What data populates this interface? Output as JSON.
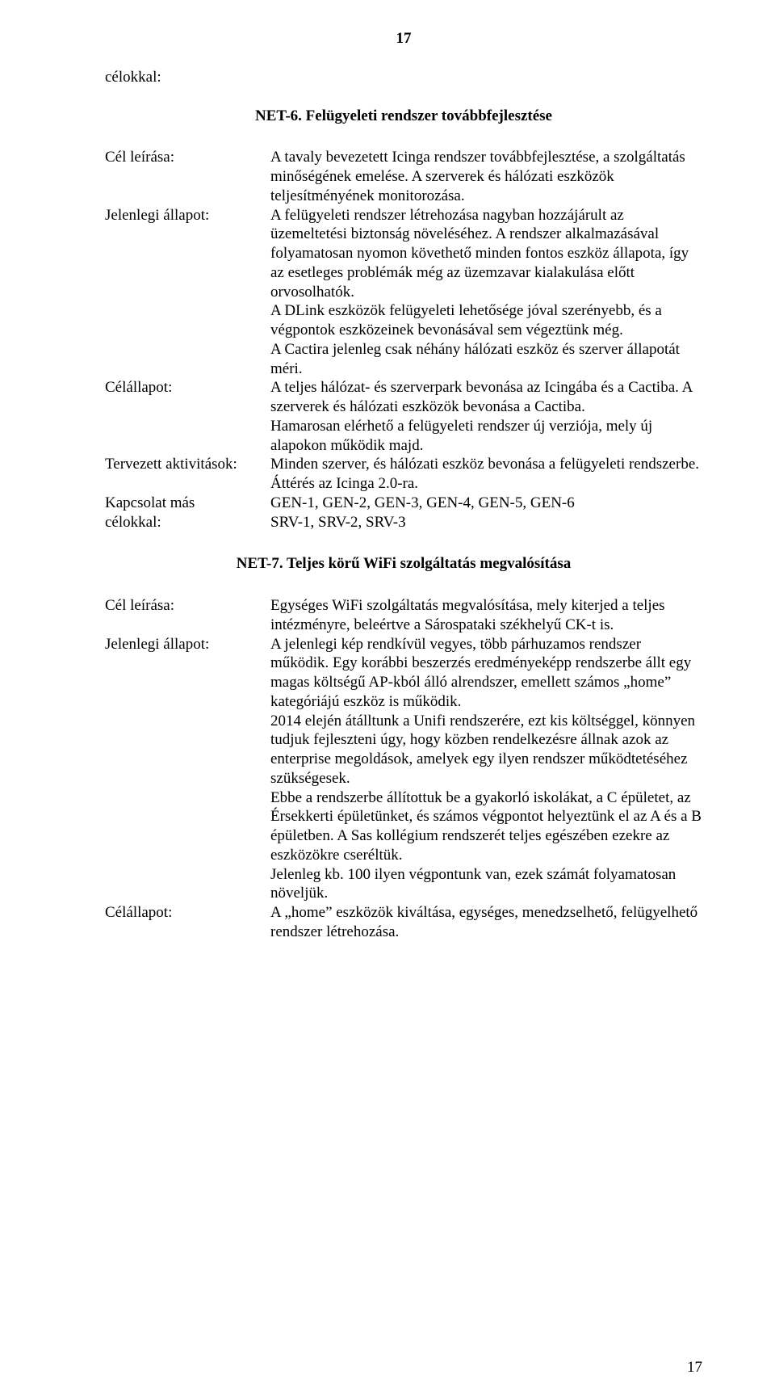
{
  "page_number_top": "17",
  "page_number_bottom": "17",
  "lead_label": "célokkal:",
  "net6": {
    "title": "NET-6. Felügyeleti rendszer továbbfejlesztése",
    "cel_leirasa_label": "Cél leírása:",
    "cel_leirasa": "A tavaly bevezetett Icinga rendszer továbbfejlesztése, a szolgáltatás minőségének emelése. A szerverek és hálózati eszközök teljesítményének monitorozása.",
    "jelenlegi_label": "Jelenlegi állapot:",
    "jelenlegi_p1": "A felügyeleti rendszer létrehozása nagyban hozzájárult az üzemeltetési biztonság növeléséhez. A rendszer alkalmazásával folyamatosan nyomon követhető minden fontos eszköz állapota, így az esetleges problémák még az üzemzavar kialakulása előtt orvosolhatók.",
    "jelenlegi_p2": "A DLink eszközök felügyeleti lehetősége jóval szerényebb, és a végpontok eszközeinek bevonásával sem végeztünk még.",
    "jelenlegi_p3": "A Cactira jelenleg csak néhány hálózati eszköz és szerver állapotát méri.",
    "celallapot_label": "Célállapot:",
    "celallapot_p1": "A teljes hálózat- és szerverpark bevonása az Icingába és a Cactiba. A szerverek és hálózati eszközök bevonása a Cactiba.",
    "celallapot_p2": "Hamarosan elérhető a felügyeleti rendszer új verziója, mely új alapokon működik majd.",
    "tervezett_label": "Tervezett aktivitások:",
    "tervezett_p1": "Minden szerver, és hálózati eszköz bevonása a felügyeleti rendszerbe.",
    "tervezett_p2": "Áttérés az Icinga 2.0-ra.",
    "kapcsolat_label_l1": "Kapcsolat más",
    "kapcsolat_label_l2": "célokkal:",
    "kapcsolat_p1": "GEN-1, GEN-2, GEN-3, GEN-4, GEN-5, GEN-6",
    "kapcsolat_p2": "SRV-1, SRV-2, SRV-3"
  },
  "net7": {
    "title": "NET-7. Teljes körű WiFi szolgáltatás megvalósítása",
    "cel_leirasa_label": "Cél leírása:",
    "cel_leirasa": "Egységes WiFi szolgáltatás megvalósítása, mely kiterjed a teljes intézményre, beleértve a Sárospataki székhelyű CK-t is.",
    "jelenlegi_label": "Jelenlegi állapot:",
    "jelenlegi_p1": "A jelenlegi kép rendkívül vegyes, több párhuzamos rendszer működik. Egy korábbi beszerzés eredményeképp rendszerbe állt egy magas költségű AP-kból álló alrendszer, emellett számos „home” kategóriájú eszköz is működik.",
    "jelenlegi_p2": "2014 elején átálltunk a Unifi rendszerére, ezt kis költséggel, könnyen tudjuk fejleszteni úgy, hogy közben rendelkezésre állnak azok az enterprise megoldások, amelyek egy ilyen rendszer működtetéséhez szükségesek.",
    "jelenlegi_p3": "Ebbe a rendszerbe állítottuk be a gyakorló iskolákat, a C épületet, az Érsekkerti épületünket, és számos végpontot helyeztünk el az A és a B épületben. A Sas kollégium rendszerét teljes egészében ezekre az eszközökre cseréltük.",
    "jelenlegi_p4": "Jelenleg kb. 100 ilyen végpontunk van, ezek számát folyamatosan növeljük.",
    "celallapot_label": "Célállapot:",
    "celallapot": "A „home” eszközök kiváltása, egységes, menedzselhető, felügyelhető rendszer létrehozása."
  }
}
